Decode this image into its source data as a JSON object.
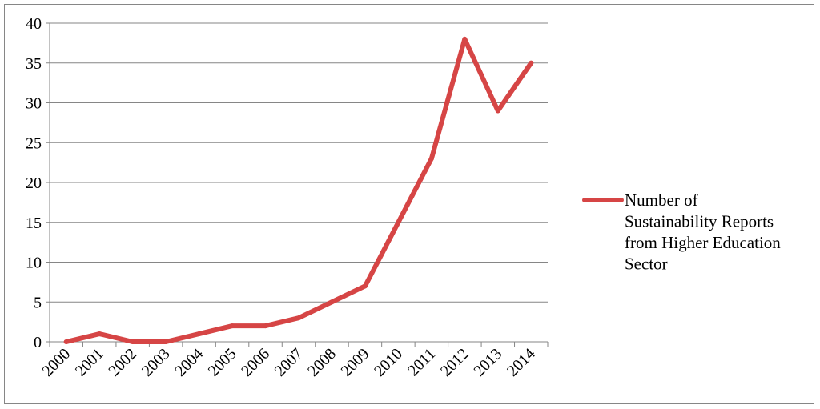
{
  "chart_data": {
    "type": "line",
    "title": "",
    "xlabel": "",
    "ylabel": "",
    "categories": [
      "2000",
      "2001",
      "2002",
      "2003",
      "2004",
      "2005",
      "2006",
      "2007",
      "2008",
      "2009",
      "2010",
      "2011",
      "2012",
      "2013",
      "2014"
    ],
    "series": [
      {
        "name": "Number of Sustainability Reports from Higher Education Sector",
        "name_lines": [
          "Number of",
          "Sustainability Reports",
          "from Higher Education",
          "Sector"
        ],
        "values": [
          0,
          1,
          0,
          0,
          1,
          2,
          2,
          3,
          5,
          7,
          15,
          23,
          38,
          29,
          35
        ],
        "color": "#d64545"
      }
    ],
    "ylim": [
      0,
      40
    ],
    "yticks": [
      "0",
      "5",
      "10",
      "15",
      "20",
      "25",
      "30",
      "35",
      "40"
    ],
    "grid": "horizontal",
    "legend": "right"
  }
}
